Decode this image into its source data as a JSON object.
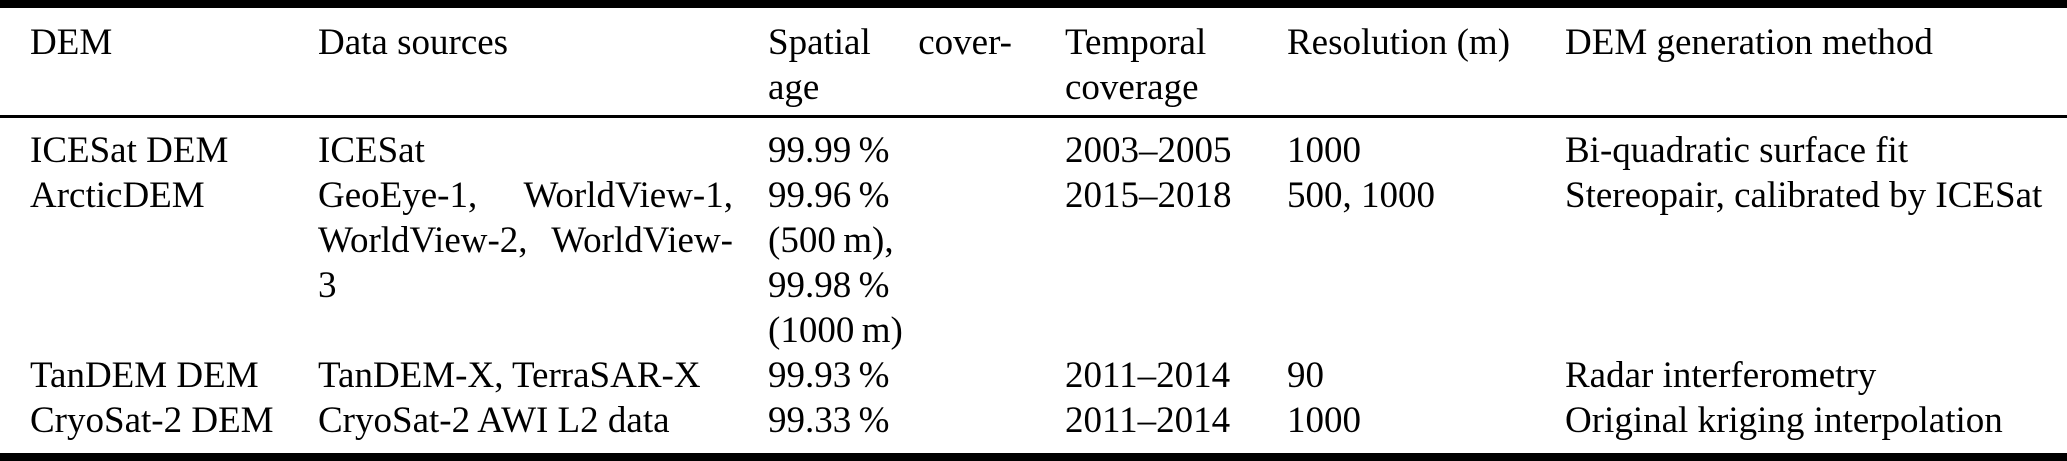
{
  "page": {
    "background_color": "#ffffff",
    "text_color": "#000000",
    "rule_color": "#000000"
  },
  "table": {
    "description": "Comparison of DEMs: data sources, coverage, resolution and generation method",
    "header": {
      "dem": "DEM",
      "data_sources": "Data sources",
      "spatial_coverage_lines": [
        "Spatial cover-",
        "age"
      ],
      "temporal_coverage_lines": [
        "Temporal",
        "coverage"
      ],
      "resolution": "Resolution (m)",
      "method": "DEM generation method"
    },
    "rows": [
      {
        "dem": "ICESat DEM",
        "data_sources": [
          "ICESat"
        ],
        "spatial_coverage": [
          "99.99 %"
        ],
        "temporal_coverage": "2003–2005",
        "resolution": "1000",
        "method": "Bi-quadratic surface fit"
      },
      {
        "dem": "ArcticDEM",
        "data_sources": [
          "GeoEye-1, WorldView-1,",
          "WorldView-2, WorldView-",
          "3"
        ],
        "spatial_coverage": [
          "99.96 %",
          "(500 m),",
          "99.98 %",
          "(1000 m)"
        ],
        "temporal_coverage": "2015–2018",
        "resolution": "500, 1000",
        "method": "Stereopair, calibrated by ICESat"
      },
      {
        "dem": "TanDEM DEM",
        "data_sources": [
          "TanDEM-X, TerraSAR-X"
        ],
        "spatial_coverage": [
          "99.93 %"
        ],
        "temporal_coverage": "2011–2014",
        "resolution": "90",
        "method": "Radar interferometry"
      },
      {
        "dem": "CryoSat-2 DEM",
        "data_sources": [
          "CryoSat-2 AWI L2 data"
        ],
        "spatial_coverage": [
          "99.33 %"
        ],
        "temporal_coverage": "2011–2014",
        "resolution": "1000",
        "method": "Original kriging interpolation"
      }
    ]
  }
}
